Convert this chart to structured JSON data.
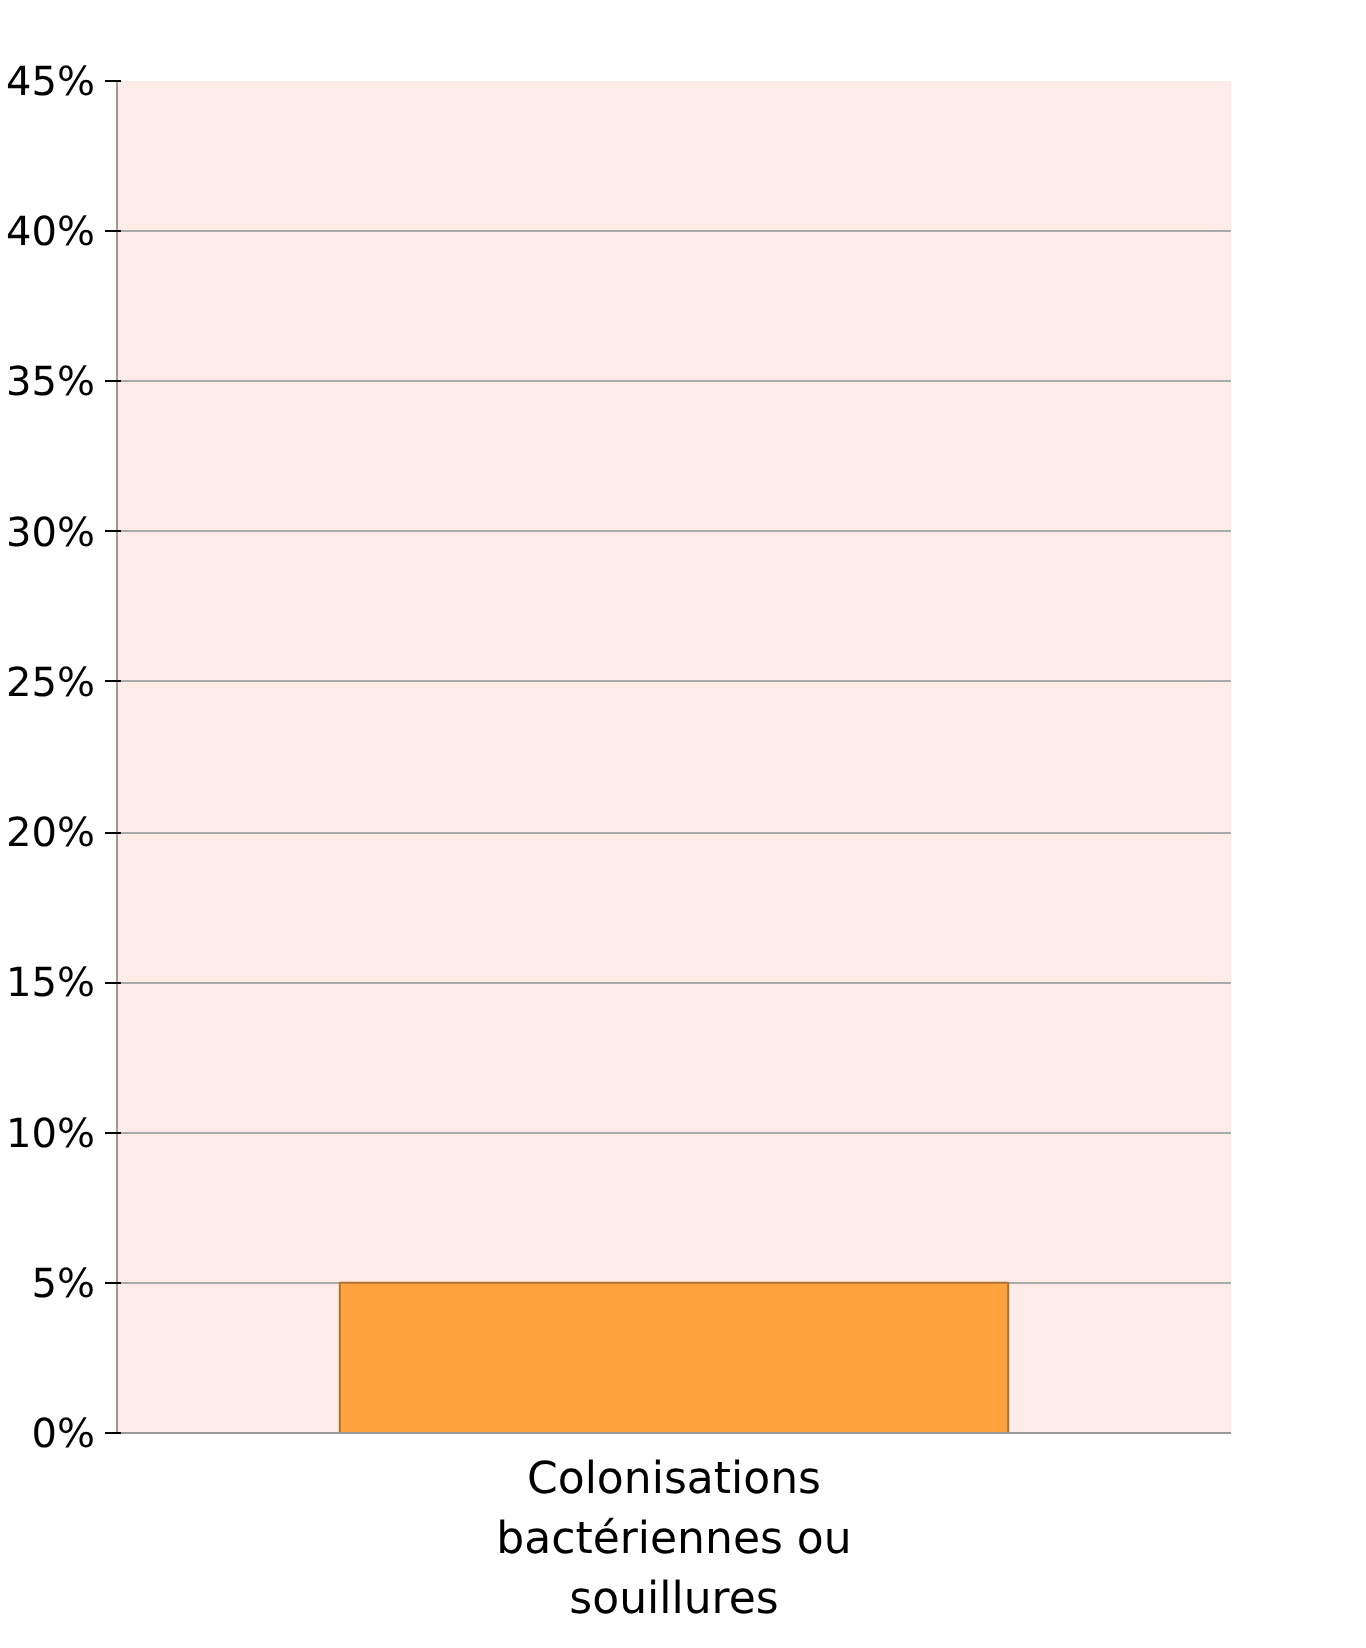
{
  "chart_data": {
    "type": "bar",
    "categories": [
      "Colonisations\nbactériennes ou\nsouillures"
    ],
    "values": [
      5
    ],
    "color": "#ffa33f",
    "ylim": [
      0,
      45
    ],
    "yticks": [
      {
        "value": 0,
        "label": "0%"
      },
      {
        "value": 5,
        "label": "5%"
      },
      {
        "value": 10,
        "label": "10%"
      },
      {
        "value": 15,
        "label": "15%"
      },
      {
        "value": 20,
        "label": "20%"
      },
      {
        "value": 25,
        "label": "25%"
      },
      {
        "value": 30,
        "label": "30%"
      },
      {
        "value": 35,
        "label": "35%"
      },
      {
        "value": 40,
        "label": "40%"
      },
      {
        "value": 45,
        "label": "45%"
      }
    ],
    "grid": "y"
  }
}
